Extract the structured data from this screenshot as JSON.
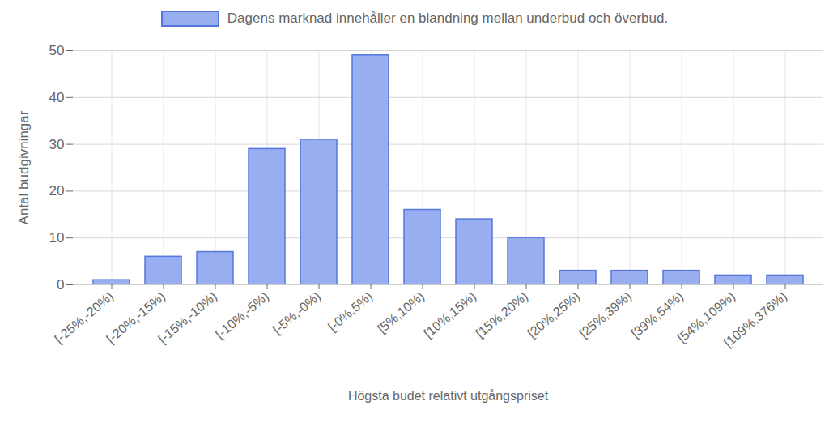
{
  "chart_data": {
    "type": "bar",
    "x_label": "Högsta budet relativt utgångspriset",
    "y_label": "Antal budgivningar",
    "categories": [
      "[-25%,-20%)",
      "[-20%,-15%)",
      "[-15%,-10%)",
      "[-10%,-5%)",
      "[-5%,-0%)",
      "[-0%,5%)",
      "[5%,10%)",
      "[10%,15%)",
      "[15%,20%)",
      "[20%,25%)",
      "[25%,39%)",
      "[39%,54%)",
      "[54%,109%)",
      "[109%,376%)"
    ],
    "series": [
      {
        "name": "Dagens marknad innehåller en blandning mellan underbud och överbud.",
        "color": "#98aef0",
        "values": [
          1,
          6,
          7,
          29,
          31,
          49,
          16,
          14,
          10,
          3,
          3,
          3,
          2,
          2
        ]
      }
    ],
    "ylim": [
      0,
      50
    ],
    "yticks": [
      0,
      10,
      20,
      30,
      40,
      50
    ],
    "grid": true,
    "legend": "top"
  }
}
